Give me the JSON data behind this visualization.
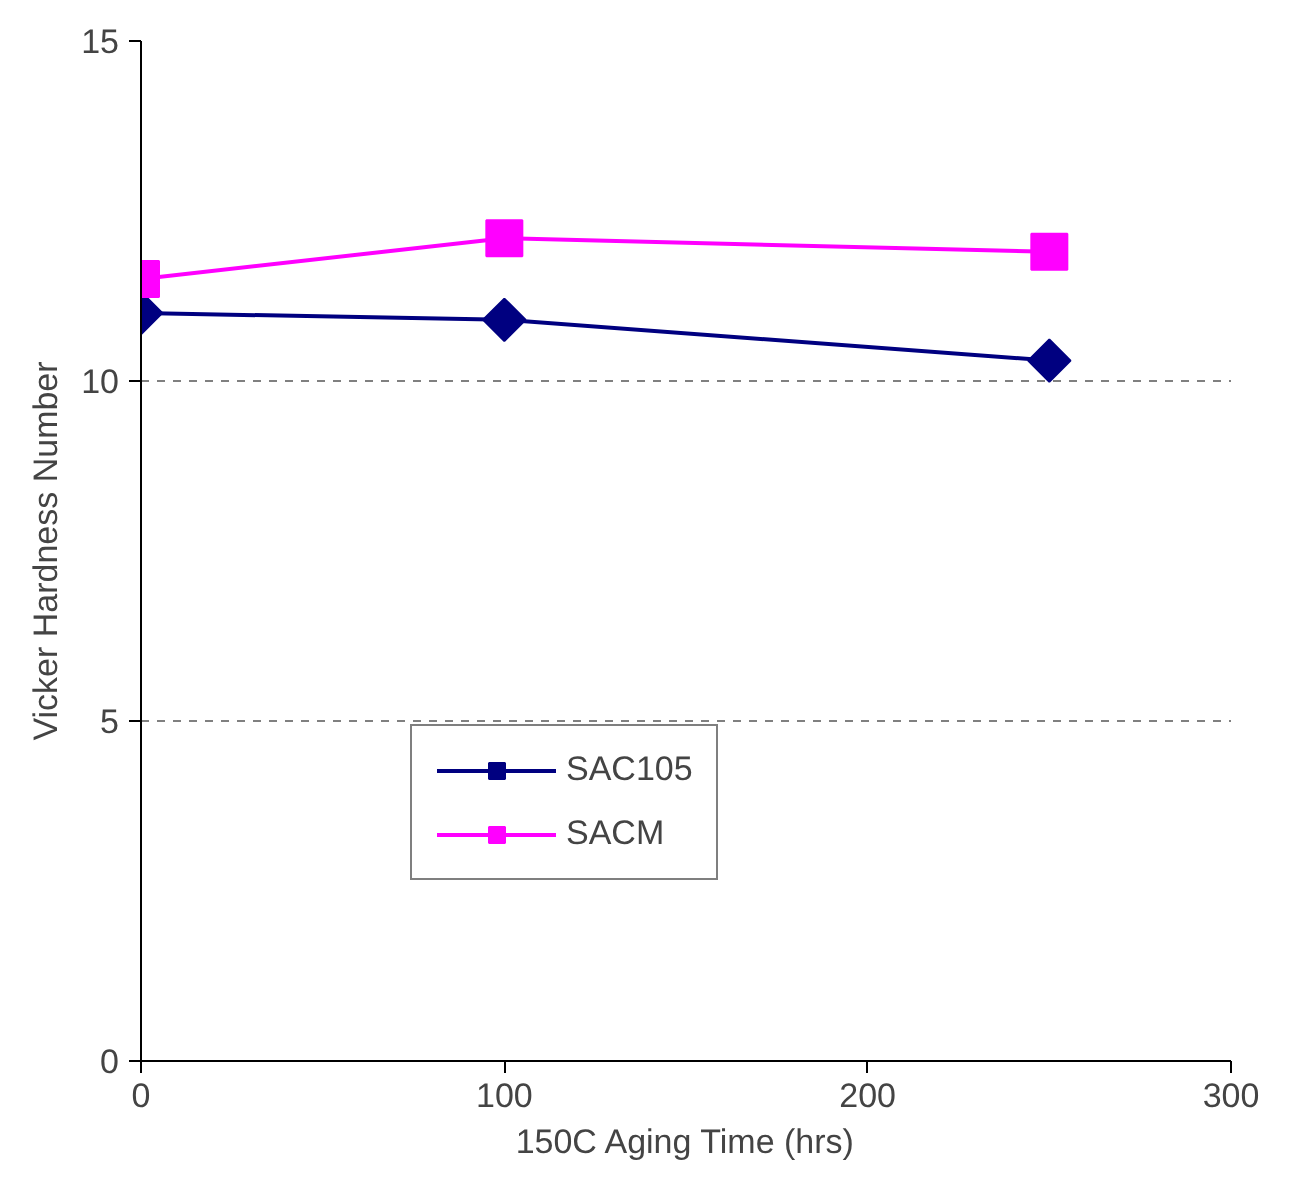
{
  "chart_data": {
    "type": "line",
    "xlabel": "150C Aging Time (hrs)",
    "ylabel": "Vicker Hardness Number",
    "x": [
      0,
      100,
      250
    ],
    "series": [
      {
        "name": "SAC105",
        "color": "#000080",
        "values": [
          11.0,
          10.9,
          10.3
        ],
        "marker": "diamond"
      },
      {
        "name": "SACM",
        "color": "#ff00ff",
        "values": [
          11.5,
          12.1,
          11.9
        ],
        "marker": "square"
      }
    ],
    "xlim": [
      0,
      300
    ],
    "xticks": [
      0,
      100,
      200,
      300
    ],
    "ylim": [
      0,
      15
    ],
    "yticks": [
      0,
      5,
      10,
      15
    ],
    "grid": "y",
    "legend": "bottom",
    "line_style": "solid"
  }
}
